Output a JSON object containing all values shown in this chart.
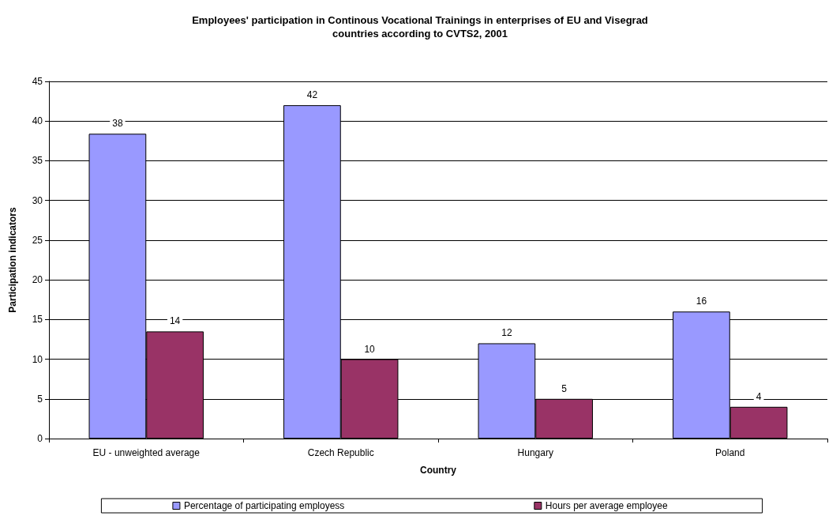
{
  "chart_data": {
    "type": "bar",
    "title": "Employees' participation in Continous Vocational Trainings in enterprises of EU and Visegrad\ncountries according to CVTS2, 2001",
    "xlabel": "Country",
    "ylabel": "Participation indicators",
    "categories": [
      "EU - unweighted average",
      "Czech Republic",
      "Hungary",
      "Poland"
    ],
    "series": [
      {
        "name": "Percentage of participating employess",
        "color": "#9999ff",
        "values": [
          38.4,
          42,
          12,
          16
        ],
        "value_labels": [
          "38",
          "42",
          "12",
          "16"
        ]
      },
      {
        "name": "Hours per average employee",
        "color": "#993366",
        "values": [
          13.5,
          10,
          5,
          4
        ],
        "value_labels": [
          "14",
          "10",
          "5",
          "4"
        ]
      }
    ],
    "ylim": [
      0,
      45
    ],
    "yticks": [
      0,
      5,
      10,
      15,
      20,
      25,
      30,
      35,
      40,
      45
    ],
    "grid": "y",
    "legend": "bottom"
  }
}
